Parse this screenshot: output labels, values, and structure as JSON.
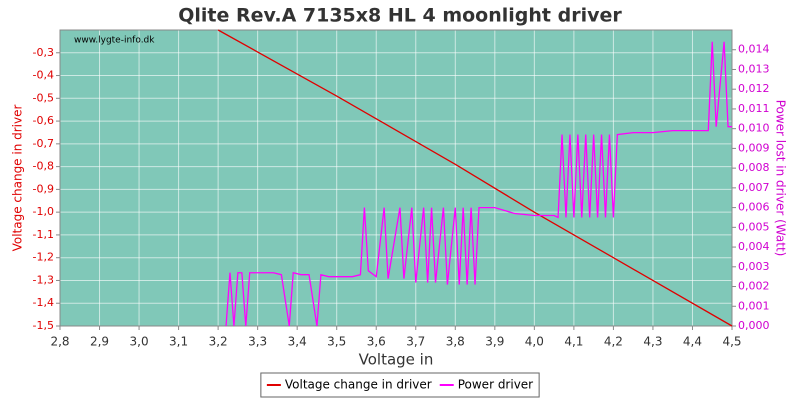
{
  "chart_data": {
    "type": "line",
    "title": "Qlite Rev.A 7135x8 HL 4 moonlight driver",
    "watermark": "www.lygte-info.dk",
    "x_label": "Voltage in",
    "y_label": "Voltage change in driver",
    "y2_label": "Power lost in driver (Watt)",
    "xlim": [
      2.8,
      4.5
    ],
    "ylim": [
      -1.5,
      -0.2
    ],
    "y2lim": [
      0,
      0.015
    ],
    "grid": true,
    "legend": "bottom",
    "background": "#80c8b8",
    "xticks": [
      {
        "value": 2.8,
        "label": "2,8"
      },
      {
        "value": 2.9,
        "label": "2,9"
      },
      {
        "value": 3.0,
        "label": "3,0"
      },
      {
        "value": 3.1,
        "label": "3,1"
      },
      {
        "value": 3.2,
        "label": "3,2"
      },
      {
        "value": 3.3,
        "label": "3,3"
      },
      {
        "value": 3.4,
        "label": "3,4"
      },
      {
        "value": 3.5,
        "label": "3,5"
      },
      {
        "value": 3.6,
        "label": "3,6"
      },
      {
        "value": 3.7,
        "label": "3,7"
      },
      {
        "value": 3.8,
        "label": "3,8"
      },
      {
        "value": 3.9,
        "label": "3,9"
      },
      {
        "value": 4.0,
        "label": "4,0"
      },
      {
        "value": 4.1,
        "label": "4,1"
      },
      {
        "value": 4.2,
        "label": "4,2"
      },
      {
        "value": 4.3,
        "label": "4,3"
      },
      {
        "value": 4.4,
        "label": "4,4"
      },
      {
        "value": 4.5,
        "label": "4,5"
      }
    ],
    "yticks": [
      {
        "value": -1.5,
        "label": "-1,5"
      },
      {
        "value": -1.4,
        "label": "-1,4"
      },
      {
        "value": -1.3,
        "label": "-1,3"
      },
      {
        "value": -1.2,
        "label": "-1,2"
      },
      {
        "value": -1.1,
        "label": "-1,1"
      },
      {
        "value": -1.0,
        "label": "-1,0"
      },
      {
        "value": -0.9,
        "label": "-0,9"
      },
      {
        "value": -0.8,
        "label": "-0,8"
      },
      {
        "value": -0.7,
        "label": "-0,7"
      },
      {
        "value": -0.6,
        "label": "-0,6"
      },
      {
        "value": -0.5,
        "label": "-0,5"
      },
      {
        "value": -0.4,
        "label": "-0,4"
      },
      {
        "value": -0.3,
        "label": "-0,3"
      }
    ],
    "y2ticks": [
      {
        "value": 0,
        "label": "0,000"
      },
      {
        "value": 0.001,
        "label": "0,001"
      },
      {
        "value": 0.002,
        "label": "0,002"
      },
      {
        "value": 0.003,
        "label": "0,003"
      },
      {
        "value": 0.004,
        "label": "0,004"
      },
      {
        "value": 0.005,
        "label": "0,005"
      },
      {
        "value": 0.006,
        "label": "0,006"
      },
      {
        "value": 0.007,
        "label": "0,007"
      },
      {
        "value": 0.008,
        "label": "0,008"
      },
      {
        "value": 0.009,
        "label": "0,009"
      },
      {
        "value": 0.01,
        "label": "0,010"
      },
      {
        "value": 0.011,
        "label": "0,011"
      },
      {
        "value": 0.012,
        "label": "0,012"
      },
      {
        "value": 0.013,
        "label": "0,013"
      },
      {
        "value": 0.014,
        "label": "0,014"
      }
    ],
    "series": [
      {
        "name": "Voltage change in driver",
        "color": "#e00000",
        "x": [
          3.2,
          3.5,
          3.8,
          4.0,
          4.2,
          4.5
        ],
        "values": [
          -0.2,
          -0.49,
          -0.79,
          -1.0,
          -1.2,
          -1.5
        ]
      },
      {
        "name": "Power driver",
        "color": "#ff00ff",
        "axis": "y2",
        "x": [
          3.22,
          3.23,
          3.24,
          3.25,
          3.26,
          3.27,
          3.28,
          3.3,
          3.32,
          3.34,
          3.36,
          3.38,
          3.39,
          3.41,
          3.43,
          3.45,
          3.46,
          3.48,
          3.5,
          3.52,
          3.54,
          3.56,
          3.57,
          3.58,
          3.6,
          3.62,
          3.63,
          3.66,
          3.67,
          3.69,
          3.7,
          3.72,
          3.73,
          3.74,
          3.75,
          3.77,
          3.78,
          3.8,
          3.81,
          3.82,
          3.83,
          3.84,
          3.85,
          3.86,
          3.9,
          3.95,
          4.0,
          4.05,
          4.06,
          4.07,
          4.08,
          4.09,
          4.1,
          4.11,
          4.12,
          4.13,
          4.14,
          4.15,
          4.16,
          4.17,
          4.18,
          4.19,
          4.2,
          4.21,
          4.25,
          4.3,
          4.35,
          4.4,
          4.44,
          4.45,
          4.46,
          4.48,
          4.49,
          4.5
        ],
        "values": [
          0,
          0.0027,
          0,
          0.0027,
          0.0027,
          0,
          0.0027,
          0.0027,
          0.0027,
          0.0027,
          0.0026,
          0,
          0.0027,
          0.0026,
          0.0026,
          0,
          0.0026,
          0.0025,
          0.0025,
          0.0025,
          0.0025,
          0.0026,
          0.006,
          0.0028,
          0.0025,
          0.006,
          0.0024,
          0.006,
          0.0024,
          0.006,
          0.0022,
          0.006,
          0.0022,
          0.006,
          0.0022,
          0.006,
          0.0021,
          0.006,
          0.0021,
          0.006,
          0.0021,
          0.006,
          0.0021,
          0.006,
          0.006,
          0.0057,
          0.0056,
          0.0056,
          0.0055,
          0.0097,
          0.0055,
          0.0097,
          0.0055,
          0.0097,
          0.0055,
          0.0097,
          0.0055,
          0.0097,
          0.0055,
          0.0097,
          0.0055,
          0.0097,
          0.0055,
          0.0097,
          0.0098,
          0.0098,
          0.0099,
          0.0099,
          0.0099,
          0.0144,
          0.0101,
          0.0144,
          0.0101,
          0.0101
        ]
      }
    ]
  }
}
